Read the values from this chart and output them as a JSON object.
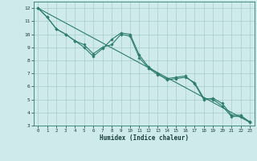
{
  "xlabel": "Humidex (Indice chaleur)",
  "xlim": [
    -0.5,
    23.5
  ],
  "ylim": [
    3,
    12.5
  ],
  "yticks": [
    3,
    4,
    5,
    6,
    7,
    8,
    9,
    10,
    11,
    12
  ],
  "xticks": [
    0,
    1,
    2,
    3,
    4,
    5,
    6,
    7,
    8,
    9,
    10,
    11,
    12,
    13,
    14,
    15,
    16,
    17,
    18,
    19,
    20,
    21,
    22,
    23
  ],
  "bg_color": "#ceeaea",
  "line_color": "#2e7d6e",
  "grid_color": "#a8cccc",
  "series1": {
    "x": [
      0,
      1,
      2,
      3,
      4,
      5,
      6,
      7,
      8,
      9,
      10,
      11,
      12,
      13,
      14,
      15,
      16,
      17,
      18,
      19,
      20,
      21,
      22,
      23
    ],
    "y": [
      12,
      11.3,
      10.4,
      10.0,
      9.5,
      9.0,
      8.3,
      8.9,
      9.6,
      10.1,
      10.0,
      8.4,
      7.5,
      7.0,
      6.5,
      6.6,
      6.7,
      6.3,
      5.1,
      5.0,
      4.5,
      3.7,
      3.7,
      3.3
    ]
  },
  "series2": {
    "x": [
      0,
      1,
      2,
      3,
      4,
      5,
      6,
      7,
      8,
      9,
      10,
      11,
      12,
      13,
      14,
      15,
      16,
      17,
      18,
      19,
      20,
      21,
      22,
      23
    ],
    "y": [
      12,
      11.3,
      10.4,
      10.0,
      9.5,
      9.2,
      8.5,
      9.0,
      9.2,
      10.0,
      9.85,
      8.2,
      7.4,
      6.9,
      6.6,
      6.7,
      6.8,
      6.2,
      5.0,
      5.1,
      4.7,
      3.8,
      3.8,
      3.25
    ]
  },
  "series3": {
    "x": [
      0,
      23
    ],
    "y": [
      12,
      3.25
    ]
  }
}
